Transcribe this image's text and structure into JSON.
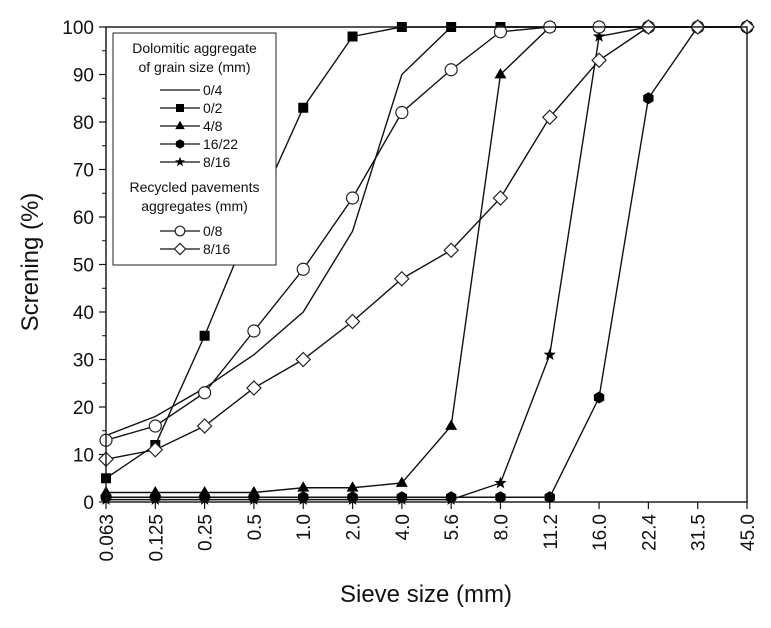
{
  "chart_data": {
    "type": "line",
    "title": "",
    "xlabel": "Sieve size  (mm)",
    "ylabel": "Screning (%)",
    "x_scale": "categorical",
    "categories": [
      "0.063",
      "0.125",
      "0.25",
      "0.5",
      "1.0",
      "2.0",
      "4.0",
      "5.6",
      "8.0",
      "11.2",
      "16.0",
      "22.4",
      "31.5",
      "45.0"
    ],
    "ylim": [
      0,
      100
    ],
    "yticks": [
      0,
      10,
      20,
      30,
      40,
      50,
      60,
      70,
      80,
      90,
      100
    ],
    "grid": false,
    "legend": {
      "placement": "top-left",
      "group1_title_line1": "Dolomitic aggregate",
      "group1_title_line2": "of grain size (mm)",
      "group2_title_line1": "Recycled pavements",
      "group2_title_line2": "aggregates (mm)"
    },
    "series": [
      {
        "name": "0/4",
        "group": 1,
        "marker": "none",
        "points": [
          [
            "0.063",
            14
          ],
          [
            "0.125",
            18
          ],
          [
            "0.25",
            24
          ],
          [
            "0.5",
            31
          ],
          [
            "1.0",
            40
          ],
          [
            "2.0",
            57
          ],
          [
            "4.0",
            90
          ],
          [
            "5.6",
            100
          ],
          [
            "8.0",
            100
          ],
          [
            "11.2",
            100
          ],
          [
            "16.0",
            100
          ],
          [
            "22.4",
            100
          ],
          [
            "31.5",
            100
          ],
          [
            "45.0",
            100
          ]
        ]
      },
      {
        "name": "0/2",
        "group": 1,
        "marker": "square",
        "points": [
          [
            "0.063",
            5
          ],
          [
            "0.125",
            12
          ],
          [
            "0.25",
            35
          ],
          [
            "0.5",
            60
          ],
          [
            "1.0",
            83
          ],
          [
            "2.0",
            98
          ],
          [
            "4.0",
            100
          ],
          [
            "5.6",
            100
          ],
          [
            "8.0",
            100
          ],
          [
            "11.2",
            100
          ],
          [
            "16.0",
            100
          ],
          [
            "22.4",
            100
          ],
          [
            "31.5",
            100
          ],
          [
            "45.0",
            100
          ]
        ]
      },
      {
        "name": "4/8",
        "group": 1,
        "marker": "triangle",
        "points": [
          [
            "0.063",
            2
          ],
          [
            "0.125",
            2
          ],
          [
            "0.25",
            2
          ],
          [
            "0.5",
            2
          ],
          [
            "1.0",
            3
          ],
          [
            "2.0",
            3
          ],
          [
            "4.0",
            4
          ],
          [
            "5.6",
            16
          ],
          [
            "8.0",
            90
          ],
          [
            "11.2",
            100
          ],
          [
            "16.0",
            100
          ],
          [
            "22.4",
            100
          ],
          [
            "31.5",
            100
          ],
          [
            "45.0",
            100
          ]
        ]
      },
      {
        "name": "16/22",
        "group": 1,
        "marker": "hexagon",
        "points": [
          [
            "0.063",
            1
          ],
          [
            "0.125",
            1
          ],
          [
            "0.25",
            1
          ],
          [
            "0.5",
            1
          ],
          [
            "1.0",
            1
          ],
          [
            "2.0",
            1
          ],
          [
            "4.0",
            1
          ],
          [
            "5.6",
            1
          ],
          [
            "8.0",
            1
          ],
          [
            "11.2",
            1
          ],
          [
            "16.0",
            22
          ],
          [
            "22.4",
            85
          ],
          [
            "31.5",
            100
          ],
          [
            "45.0",
            100
          ]
        ]
      },
      {
        "name": "8/16",
        "group": 1,
        "marker": "star",
        "points": [
          [
            "0.063",
            0.5
          ],
          [
            "0.125",
            0.5
          ],
          [
            "0.25",
            0.5
          ],
          [
            "0.5",
            0.5
          ],
          [
            "1.0",
            0.5
          ],
          [
            "2.0",
            0.5
          ],
          [
            "4.0",
            0.5
          ],
          [
            "5.6",
            0.5
          ],
          [
            "8.0",
            4
          ],
          [
            "11.2",
            31
          ],
          [
            "16.0",
            98
          ],
          [
            "22.4",
            100
          ],
          [
            "31.5",
            100
          ],
          [
            "45.0",
            100
          ]
        ]
      },
      {
        "name": "0/8",
        "group": 2,
        "marker": "circle-open",
        "points": [
          [
            "0.063",
            13
          ],
          [
            "0.125",
            16
          ],
          [
            "0.25",
            23
          ],
          [
            "0.5",
            36
          ],
          [
            "1.0",
            49
          ],
          [
            "2.0",
            64
          ],
          [
            "4.0",
            82
          ],
          [
            "5.6",
            91
          ],
          [
            "8.0",
            99
          ],
          [
            "11.2",
            100
          ],
          [
            "16.0",
            100
          ],
          [
            "22.4",
            100
          ],
          [
            "31.5",
            100
          ],
          [
            "45.0",
            100
          ]
        ]
      },
      {
        "name": "8/16",
        "group": 2,
        "marker": "diamond-open",
        "points": [
          [
            "0.063",
            9
          ],
          [
            "0.125",
            11
          ],
          [
            "0.25",
            16
          ],
          [
            "0.5",
            24
          ],
          [
            "1.0",
            30
          ],
          [
            "2.0",
            38
          ],
          [
            "4.0",
            47
          ],
          [
            "5.6",
            53
          ],
          [
            "8.0",
            64
          ],
          [
            "11.2",
            81
          ],
          [
            "16.0",
            93
          ],
          [
            "22.4",
            100
          ],
          [
            "31.5",
            100
          ],
          [
            "45.0",
            100
          ]
        ]
      }
    ]
  }
}
